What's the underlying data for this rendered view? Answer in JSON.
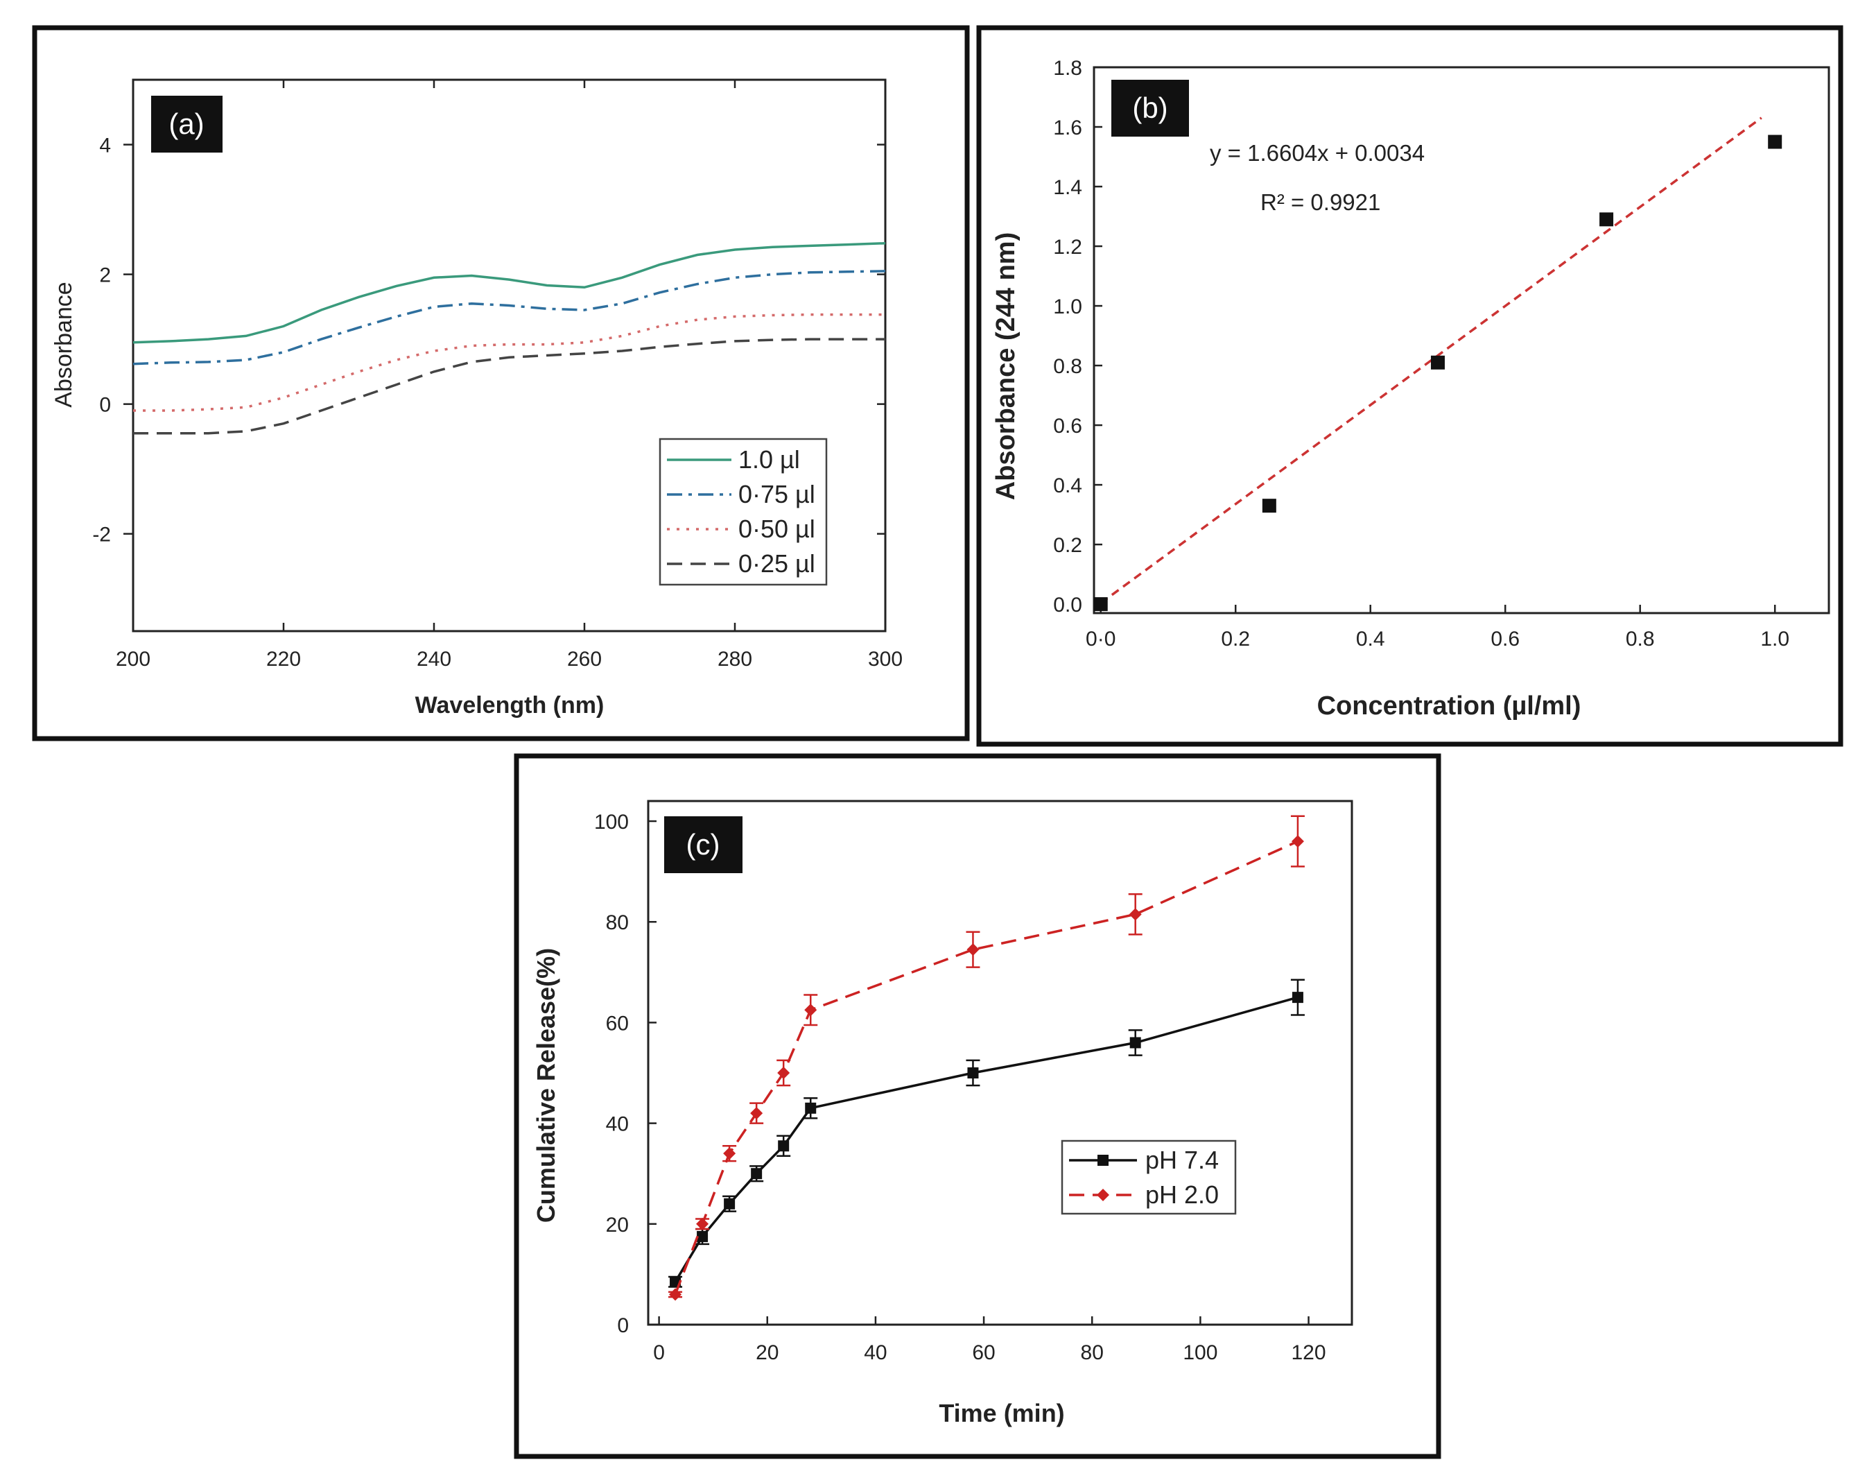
{
  "chart_data": [
    {
      "panel": "a",
      "type": "line",
      "label": "(a)",
      "xlabel": "Wavelength (nm)",
      "ylabel": "Absorbance",
      "xlim": [
        200,
        300
      ],
      "ylim": [
        -3.5,
        5
      ],
      "xticks": [
        200,
        220,
        240,
        260,
        280,
        300
      ],
      "yticks": [
        -2,
        0,
        2,
        4
      ],
      "legend_position": "bottom-right",
      "series": [
        {
          "name": "1.0 µl",
          "color": "#3a9a7c",
          "dash": "solid",
          "x": [
            200,
            205,
            210,
            215,
            220,
            225,
            230,
            235,
            240,
            245,
            250,
            255,
            260,
            265,
            270,
            275,
            280,
            285,
            290,
            295,
            300
          ],
          "y": [
            0.95,
            0.97,
            1.0,
            1.05,
            1.2,
            1.45,
            1.65,
            1.82,
            1.95,
            1.98,
            1.92,
            1.83,
            1.8,
            1.95,
            2.15,
            2.3,
            2.38,
            2.42,
            2.44,
            2.46,
            2.48
          ]
        },
        {
          "name": "0·75 µl",
          "color": "#2e6f9e",
          "dash": "dashdot",
          "x": [
            200,
            205,
            210,
            215,
            220,
            225,
            230,
            235,
            240,
            245,
            250,
            255,
            260,
            265,
            270,
            275,
            280,
            285,
            290,
            295,
            300
          ],
          "y": [
            0.62,
            0.64,
            0.65,
            0.68,
            0.8,
            1.0,
            1.18,
            1.35,
            1.5,
            1.55,
            1.52,
            1.47,
            1.45,
            1.55,
            1.72,
            1.85,
            1.95,
            2.0,
            2.03,
            2.04,
            2.05
          ]
        },
        {
          "name": "0·50 µl",
          "color": "#d46a6a",
          "dash": "dotted",
          "x": [
            200,
            205,
            210,
            215,
            220,
            225,
            230,
            235,
            240,
            245,
            250,
            255,
            260,
            265,
            270,
            275,
            280,
            285,
            290,
            295,
            300
          ],
          "y": [
            -0.1,
            -0.1,
            -0.08,
            -0.05,
            0.1,
            0.3,
            0.5,
            0.68,
            0.82,
            0.9,
            0.92,
            0.92,
            0.95,
            1.05,
            1.2,
            1.3,
            1.35,
            1.37,
            1.38,
            1.38,
            1.38
          ]
        },
        {
          "name": "0·25 µl",
          "color": "#444444",
          "dash": "dashed",
          "x": [
            200,
            205,
            210,
            215,
            220,
            225,
            230,
            235,
            240,
            245,
            250,
            255,
            260,
            265,
            270,
            275,
            280,
            285,
            290,
            295,
            300
          ],
          "y": [
            -0.45,
            -0.45,
            -0.45,
            -0.42,
            -0.3,
            -0.1,
            0.1,
            0.3,
            0.5,
            0.65,
            0.72,
            0.75,
            0.78,
            0.82,
            0.88,
            0.93,
            0.97,
            0.99,
            1.0,
            1.0,
            1.0
          ]
        }
      ]
    },
    {
      "panel": "b",
      "type": "scatter",
      "label": "(b)",
      "xlabel": "Concentration (µl/ml)",
      "ylabel": "Absorbance (244 nm)",
      "xlim": [
        -0.01,
        1.08
      ],
      "ylim": [
        -0.03,
        1.8
      ],
      "xticks": [
        0.0,
        0.2,
        0.4,
        0.6,
        0.8,
        1.0
      ],
      "xtick_labels": [
        "0·0",
        "0.2",
        "0.4",
        "0.6",
        "0.8",
        "1.0"
      ],
      "yticks": [
        0.0,
        0.2,
        0.4,
        0.6,
        0.8,
        1.0,
        1.2,
        1.4,
        1.6,
        1.8
      ],
      "ytick_labels": [
        "0.0",
        "0.2",
        "0.4",
        "0.6",
        "0.8",
        "1.0",
        "1.2",
        "1.4",
        "1.6",
        "1.8"
      ],
      "points": {
        "x": [
          0.0,
          0.25,
          0.5,
          0.75,
          1.0
        ],
        "y": [
          0.0,
          0.33,
          0.81,
          1.29,
          1.55
        ]
      },
      "fit": {
        "slope": 1.6604,
        "intercept": 0.0034,
        "x_range": [
          0.0,
          0.98
        ],
        "color": "#cc3333"
      },
      "equation": "y = 1.6604x + 0.0034",
      "r2": "R² = 0.9921",
      "marker_color": "#111111"
    },
    {
      "panel": "c",
      "type": "line",
      "label": "(c)",
      "xlabel": "Time (min)",
      "ylabel": "Cumulative Release(%)",
      "xlim": [
        -2,
        128
      ],
      "ylim": [
        0,
        104
      ],
      "xticks": [
        0,
        20,
        40,
        60,
        80,
        100,
        120
      ],
      "yticks": [
        0,
        20,
        40,
        60,
        80,
        100
      ],
      "legend_position": "center-right",
      "series": [
        {
          "name": "pH 7.4",
          "color": "#111111",
          "dash": "solid",
          "marker": "square",
          "x": [
            3,
            8,
            13,
            18,
            23,
            28,
            58,
            88,
            118
          ],
          "y": [
            8.5,
            17.5,
            24,
            30,
            35.5,
            43,
            50,
            56,
            65
          ],
          "err": [
            1,
            1.5,
            1.5,
            1.5,
            2,
            2,
            2.5,
            2.5,
            3.5
          ]
        },
        {
          "name": "pH 2.0",
          "color": "#cc2222",
          "dash": "dashed",
          "marker": "diamond",
          "x": [
            3,
            8,
            13,
            18,
            23,
            28,
            58,
            88,
            118
          ],
          "y": [
            6,
            20,
            34,
            42,
            50,
            62.5,
            74.5,
            81.5,
            96
          ],
          "err": [
            0.5,
            1,
            1.5,
            2,
            2.5,
            3,
            3.5,
            4,
            5
          ]
        }
      ]
    }
  ]
}
